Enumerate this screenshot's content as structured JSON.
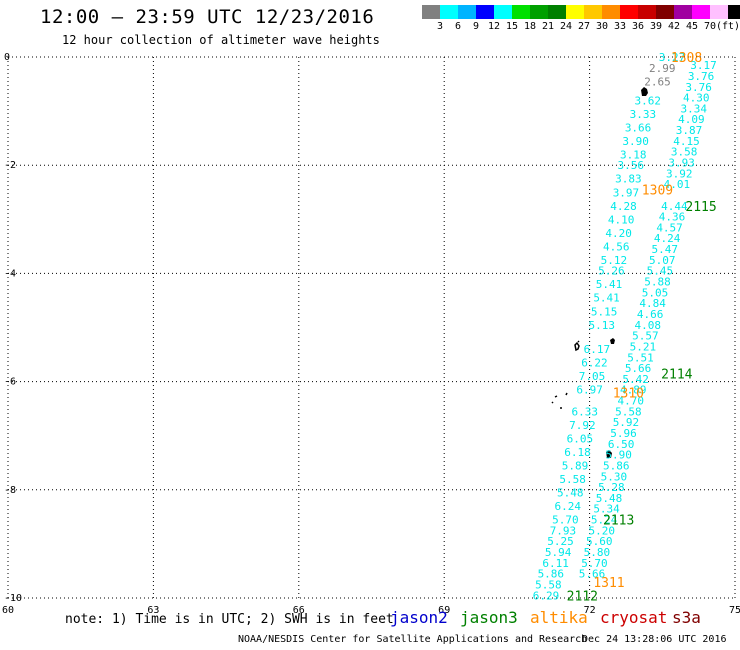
{
  "header": {
    "title": "12:00 – 23:59 UTC 12/23/2016",
    "subtitle": "12 hour collection of altimeter wave heights"
  },
  "color_scale": {
    "colors": [
      "#808080",
      "#00ffff",
      "#00b4ff",
      "#0000ff",
      "#00ffff",
      "#00e000",
      "#00a000",
      "#008000",
      "#ffff00",
      "#ffc800",
      "#ff8c00",
      "#ff0000",
      "#c80000",
      "#800000",
      "#a000a0",
      "#ff00ff",
      "#ffc0ff",
      "#000000"
    ],
    "labels": [
      "3",
      "6",
      "9",
      "12",
      "15",
      "18",
      "21",
      "24",
      "27",
      "30",
      "33",
      "36",
      "39",
      "42",
      "45",
      "70",
      "(ft)"
    ]
  },
  "chart_data": {
    "type": "scatter",
    "xlim": [
      60,
      75
    ],
    "ylim": [
      -10,
      0
    ],
    "x_ticks": [
      "60",
      "63",
      "66",
      "69",
      "72",
      "75"
    ],
    "y_ticks": [
      "0",
      "-2",
      "-4",
      "-6",
      "-8",
      "-10"
    ],
    "grid": true,
    "tracks": [
      {
        "satellite": "altika",
        "color": "#ff8c00",
        "pass_labels": [
          {
            "text": "1308",
            "x": 74.0,
            "y": 0.0
          },
          {
            "text": "1309",
            "x": 73.4,
            "y": -2.45
          },
          {
            "text": "1310",
            "x": 72.8,
            "y": -6.2
          },
          {
            "text": "1311",
            "x": 72.4,
            "y": -9.7
          }
        ]
      },
      {
        "satellite": "jason3",
        "color": "#008000",
        "pass_labels": [
          {
            "text": "2115",
            "x": 74.3,
            "y": -2.75
          },
          {
            "text": "2114",
            "x": 73.8,
            "y": -5.85
          },
          {
            "text": "2113",
            "x": 72.6,
            "y": -8.55
          },
          {
            "text": "2112",
            "x": 71.85,
            "y": -9.95
          }
        ]
      }
    ],
    "swh_values": [
      {
        "v": "3.27",
        "x": 73.7,
        "y": 0.0,
        "c": "#00e8e8"
      },
      {
        "v": "2.99",
        "x": 73.5,
        "y": -0.2,
        "c": "#808080"
      },
      {
        "v": "2.65",
        "x": 73.4,
        "y": -0.45,
        "c": "#808080"
      },
      {
        "v": "3.62",
        "x": 73.2,
        "y": -0.8,
        "c": "#00e8e8"
      },
      {
        "v": "3.33",
        "x": 73.1,
        "y": -1.05,
        "c": "#00e8e8"
      },
      {
        "v": "3.66",
        "x": 73.0,
        "y": -1.3,
        "c": "#00e8e8"
      },
      {
        "v": "3.90",
        "x": 72.95,
        "y": -1.55,
        "c": "#00e8e8"
      },
      {
        "v": "3.18",
        "x": 72.9,
        "y": -1.8,
        "c": "#00e8e8"
      },
      {
        "v": "3.56",
        "x": 72.85,
        "y": -2.0,
        "c": "#00e8e8"
      },
      {
        "v": "3.83",
        "x": 72.8,
        "y": -2.25,
        "c": "#00e8e8"
      },
      {
        "v": "3.97",
        "x": 72.75,
        "y": -2.5,
        "c": "#00e8e8"
      },
      {
        "v": "4.28",
        "x": 72.7,
        "y": -2.75,
        "c": "#00e8e8"
      },
      {
        "v": "4.10",
        "x": 72.65,
        "y": -3.0,
        "c": "#00e8e8"
      },
      {
        "v": "4.20",
        "x": 72.6,
        "y": -3.25,
        "c": "#00e8e8"
      },
      {
        "v": "4.56",
        "x": 72.55,
        "y": -3.5,
        "c": "#00e8e8"
      },
      {
        "v": "5.12",
        "x": 72.5,
        "y": -3.75,
        "c": "#00e8e8"
      },
      {
        "v": "5.26",
        "x": 72.45,
        "y": -3.95,
        "c": "#00e8e8"
      },
      {
        "v": "5.41",
        "x": 72.4,
        "y": -4.2,
        "c": "#00e8e8"
      },
      {
        "v": "5.41",
        "x": 72.35,
        "y": -4.45,
        "c": "#00e8e8"
      },
      {
        "v": "5.15",
        "x": 72.3,
        "y": -4.7,
        "c": "#00e8e8"
      },
      {
        "v": "5.13",
        "x": 72.25,
        "y": -4.95,
        "c": "#00e8e8"
      },
      {
        "v": "6.17",
        "x": 72.15,
        "y": -5.4,
        "c": "#00e8e8"
      },
      {
        "v": "6.22",
        "x": 72.1,
        "y": -5.65,
        "c": "#00e8e8"
      },
      {
        "v": "7.05",
        "x": 72.05,
        "y": -5.9,
        "c": "#00e8e8"
      },
      {
        "v": "6.97",
        "x": 72.0,
        "y": -6.15,
        "c": "#00e8e8"
      },
      {
        "v": "6.33",
        "x": 71.9,
        "y": -6.55,
        "c": "#00e8e8"
      },
      {
        "v": "7.92",
        "x": 71.85,
        "y": -6.8,
        "c": "#00e8e8"
      },
      {
        "v": "6.05",
        "x": 71.8,
        "y": -7.05,
        "c": "#00e8e8"
      },
      {
        "v": "6.18",
        "x": 71.75,
        "y": -7.3,
        "c": "#00e8e8"
      },
      {
        "v": "5.89",
        "x": 71.7,
        "y": -7.55,
        "c": "#00e8e8"
      },
      {
        "v": "5.58",
        "x": 71.65,
        "y": -7.8,
        "c": "#00e8e8"
      },
      {
        "v": "5.48",
        "x": 71.6,
        "y": -8.05,
        "c": "#00e8e8"
      },
      {
        "v": "6.24",
        "x": 71.55,
        "y": -8.3,
        "c": "#00e8e8"
      },
      {
        "v": "5.70",
        "x": 71.5,
        "y": -8.55,
        "c": "#00e8e8"
      },
      {
        "v": "7.93",
        "x": 71.45,
        "y": -8.75,
        "c": "#00e8e8"
      },
      {
        "v": "5.25",
        "x": 71.4,
        "y": -8.95,
        "c": "#00e8e8"
      },
      {
        "v": "5.94",
        "x": 71.35,
        "y": -9.15,
        "c": "#00e8e8"
      },
      {
        "v": "6.11",
        "x": 71.3,
        "y": -9.35,
        "c": "#00e8e8"
      },
      {
        "v": "5.86",
        "x": 71.2,
        "y": -9.55,
        "c": "#00e8e8"
      },
      {
        "v": "5.58",
        "x": 71.15,
        "y": -9.75,
        "c": "#00e8e8"
      },
      {
        "v": "6.29",
        "x": 71.1,
        "y": -9.95,
        "c": "#00e8e8"
      },
      {
        "v": "3.17",
        "x": 74.35,
        "y": -0.15,
        "c": "#00e8e8"
      },
      {
        "v": "3.76",
        "x": 74.3,
        "y": -0.35,
        "c": "#00e8e8"
      },
      {
        "v": "3.76",
        "x": 74.25,
        "y": -0.55,
        "c": "#00e8e8"
      },
      {
        "v": "4.30",
        "x": 74.2,
        "y": -0.75,
        "c": "#00e8e8"
      },
      {
        "v": "3.34",
        "x": 74.15,
        "y": -0.95,
        "c": "#00e8e8"
      },
      {
        "v": "4.09",
        "x": 74.1,
        "y": -1.15,
        "c": "#00e8e8"
      },
      {
        "v": "3.87",
        "x": 74.05,
        "y": -1.35,
        "c": "#00e8e8"
      },
      {
        "v": "4.15",
        "x": 74.0,
        "y": -1.55,
        "c": "#00e8e8"
      },
      {
        "v": "3.58",
        "x": 73.95,
        "y": -1.75,
        "c": "#00e8e8"
      },
      {
        "v": "3.93",
        "x": 73.9,
        "y": -1.95,
        "c": "#00e8e8"
      },
      {
        "v": "3.92",
        "x": 73.85,
        "y": -2.15,
        "c": "#00e8e8"
      },
      {
        "v": "4.01",
        "x": 73.8,
        "y": -2.35,
        "c": "#00e8e8"
      },
      {
        "v": "4.44",
        "x": 73.75,
        "y": -2.75,
        "c": "#00e8e8"
      },
      {
        "v": "4.36",
        "x": 73.7,
        "y": -2.95,
        "c": "#00e8e8"
      },
      {
        "v": "4.57",
        "x": 73.65,
        "y": -3.15,
        "c": "#00e8e8"
      },
      {
        "v": "4.24",
        "x": 73.6,
        "y": -3.35,
        "c": "#00e8e8"
      },
      {
        "v": "5.47",
        "x": 73.55,
        "y": -3.55,
        "c": "#00e8e8"
      },
      {
        "v": "5.07",
        "x": 73.5,
        "y": -3.75,
        "c": "#00e8e8"
      },
      {
        "v": "5.45",
        "x": 73.45,
        "y": -3.95,
        "c": "#00e8e8"
      },
      {
        "v": "5.88",
        "x": 73.4,
        "y": -4.15,
        "c": "#00e8e8"
      },
      {
        "v": "5.05",
        "x": 73.35,
        "y": -4.35,
        "c": "#00e8e8"
      },
      {
        "v": "4.84",
        "x": 73.3,
        "y": -4.55,
        "c": "#00e8e8"
      },
      {
        "v": "4.66",
        "x": 73.25,
        "y": -4.75,
        "c": "#00e8e8"
      },
      {
        "v": "4.08",
        "x": 73.2,
        "y": -4.95,
        "c": "#00e8e8"
      },
      {
        "v": "5.57",
        "x": 73.15,
        "y": -5.15,
        "c": "#00e8e8"
      },
      {
        "v": "5.21",
        "x": 73.1,
        "y": -5.35,
        "c": "#00e8e8"
      },
      {
        "v": "5.51",
        "x": 73.05,
        "y": -5.55,
        "c": "#00e8e8"
      },
      {
        "v": "5.66",
        "x": 73.0,
        "y": -5.75,
        "c": "#00e8e8"
      },
      {
        "v": "5.42",
        "x": 72.95,
        "y": -5.95,
        "c": "#00e8e8"
      },
      {
        "v": "4.89",
        "x": 72.9,
        "y": -6.15,
        "c": "#00e8e8"
      },
      {
        "v": "4.70",
        "x": 72.85,
        "y": -6.35,
        "c": "#00e8e8"
      },
      {
        "v": "5.58",
        "x": 72.8,
        "y": -6.55,
        "c": "#00e8e8"
      },
      {
        "v": "5.92",
        "x": 72.75,
        "y": -6.75,
        "c": "#00e8e8"
      },
      {
        "v": "5.96",
        "x": 72.7,
        "y": -6.95,
        "c": "#00e8e8"
      },
      {
        "v": "6.50",
        "x": 72.65,
        "y": -7.15,
        "c": "#00e8e8"
      },
      {
        "v": "5.90",
        "x": 72.6,
        "y": -7.35,
        "c": "#00e8e8"
      },
      {
        "v": "5.86",
        "x": 72.55,
        "y": -7.55,
        "c": "#00e8e8"
      },
      {
        "v": "5.30",
        "x": 72.5,
        "y": -7.75,
        "c": "#00e8e8"
      },
      {
        "v": "5.28",
        "x": 72.45,
        "y": -7.95,
        "c": "#00e8e8"
      },
      {
        "v": "5.48",
        "x": 72.4,
        "y": -8.15,
        "c": "#00e8e8"
      },
      {
        "v": "5.34",
        "x": 72.35,
        "y": -8.35,
        "c": "#00e8e8"
      },
      {
        "v": "5.24",
        "x": 72.3,
        "y": -8.55,
        "c": "#00e8e8"
      },
      {
        "v": "5.20",
        "x": 72.25,
        "y": -8.75,
        "c": "#00e8e8"
      },
      {
        "v": "5.60",
        "x": 72.2,
        "y": -8.95,
        "c": "#00e8e8"
      },
      {
        "v": "5.80",
        "x": 72.15,
        "y": -9.15,
        "c": "#00e8e8"
      },
      {
        "v": "5.70",
        "x": 72.1,
        "y": -9.35,
        "c": "#00e8e8"
      },
      {
        "v": "5.66",
        "x": 72.05,
        "y": -9.55,
        "c": "#00e8e8"
      }
    ]
  },
  "satellite_legend": [
    {
      "name": "jason2",
      "color": "#0000cc"
    },
    {
      "name": "jason3",
      "color": "#008000"
    },
    {
      "name": "altika",
      "color": "#ff8c00"
    },
    {
      "name": "cryosat",
      "color": "#cc0000"
    },
    {
      "name": "s3a",
      "color": "#800000"
    }
  ],
  "footer": {
    "note": "note: 1) Time is in UTC; 2) SWH is in feet",
    "credit": "NOAA/NESDIS Center for Satellite Applications and Research",
    "timestamp": "Dec 24 13:28:06 UTC 2016"
  }
}
